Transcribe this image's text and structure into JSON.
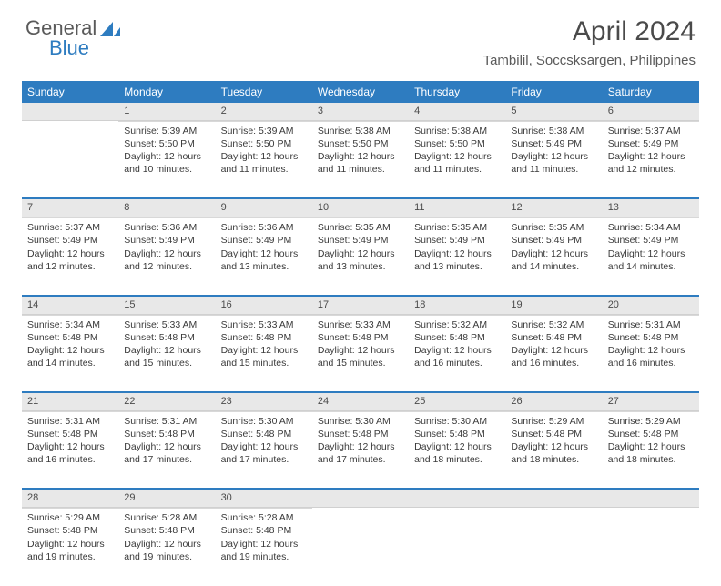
{
  "logo": {
    "text1": "General",
    "text2": "Blue"
  },
  "title": "April 2024",
  "location": "Tambilil, Soccsksargen, Philippines",
  "colors": {
    "header_bg": "#2e7cc0",
    "header_text": "#ffffff",
    "daynum_bg": "#e8e8e8",
    "text": "#3a3a3a",
    "accent": "#2e7cc0"
  },
  "typography": {
    "title_fontsize": 30,
    "location_fontsize": 15,
    "weekday_fontsize": 12,
    "daynum_fontsize": 11,
    "cell_fontsize": 10.5
  },
  "weekdays": [
    "Sunday",
    "Monday",
    "Tuesday",
    "Wednesday",
    "Thursday",
    "Friday",
    "Saturday"
  ],
  "calendar": {
    "type": "table",
    "columns": 7,
    "weeks": [
      {
        "nums": [
          "",
          "1",
          "2",
          "3",
          "4",
          "5",
          "6"
        ],
        "cells": [
          null,
          {
            "sunrise": "Sunrise: 5:39 AM",
            "sunset": "Sunset: 5:50 PM",
            "day1": "Daylight: 12 hours",
            "day2": "and 10 minutes."
          },
          {
            "sunrise": "Sunrise: 5:39 AM",
            "sunset": "Sunset: 5:50 PM",
            "day1": "Daylight: 12 hours",
            "day2": "and 11 minutes."
          },
          {
            "sunrise": "Sunrise: 5:38 AM",
            "sunset": "Sunset: 5:50 PM",
            "day1": "Daylight: 12 hours",
            "day2": "and 11 minutes."
          },
          {
            "sunrise": "Sunrise: 5:38 AM",
            "sunset": "Sunset: 5:50 PM",
            "day1": "Daylight: 12 hours",
            "day2": "and 11 minutes."
          },
          {
            "sunrise": "Sunrise: 5:38 AM",
            "sunset": "Sunset: 5:49 PM",
            "day1": "Daylight: 12 hours",
            "day2": "and 11 minutes."
          },
          {
            "sunrise": "Sunrise: 5:37 AM",
            "sunset": "Sunset: 5:49 PM",
            "day1": "Daylight: 12 hours",
            "day2": "and 12 minutes."
          }
        ]
      },
      {
        "nums": [
          "7",
          "8",
          "9",
          "10",
          "11",
          "12",
          "13"
        ],
        "cells": [
          {
            "sunrise": "Sunrise: 5:37 AM",
            "sunset": "Sunset: 5:49 PM",
            "day1": "Daylight: 12 hours",
            "day2": "and 12 minutes."
          },
          {
            "sunrise": "Sunrise: 5:36 AM",
            "sunset": "Sunset: 5:49 PM",
            "day1": "Daylight: 12 hours",
            "day2": "and 12 minutes."
          },
          {
            "sunrise": "Sunrise: 5:36 AM",
            "sunset": "Sunset: 5:49 PM",
            "day1": "Daylight: 12 hours",
            "day2": "and 13 minutes."
          },
          {
            "sunrise": "Sunrise: 5:35 AM",
            "sunset": "Sunset: 5:49 PM",
            "day1": "Daylight: 12 hours",
            "day2": "and 13 minutes."
          },
          {
            "sunrise": "Sunrise: 5:35 AM",
            "sunset": "Sunset: 5:49 PM",
            "day1": "Daylight: 12 hours",
            "day2": "and 13 minutes."
          },
          {
            "sunrise": "Sunrise: 5:35 AM",
            "sunset": "Sunset: 5:49 PM",
            "day1": "Daylight: 12 hours",
            "day2": "and 14 minutes."
          },
          {
            "sunrise": "Sunrise: 5:34 AM",
            "sunset": "Sunset: 5:49 PM",
            "day1": "Daylight: 12 hours",
            "day2": "and 14 minutes."
          }
        ]
      },
      {
        "nums": [
          "14",
          "15",
          "16",
          "17",
          "18",
          "19",
          "20"
        ],
        "cells": [
          {
            "sunrise": "Sunrise: 5:34 AM",
            "sunset": "Sunset: 5:48 PM",
            "day1": "Daylight: 12 hours",
            "day2": "and 14 minutes."
          },
          {
            "sunrise": "Sunrise: 5:33 AM",
            "sunset": "Sunset: 5:48 PM",
            "day1": "Daylight: 12 hours",
            "day2": "and 15 minutes."
          },
          {
            "sunrise": "Sunrise: 5:33 AM",
            "sunset": "Sunset: 5:48 PM",
            "day1": "Daylight: 12 hours",
            "day2": "and 15 minutes."
          },
          {
            "sunrise": "Sunrise: 5:33 AM",
            "sunset": "Sunset: 5:48 PM",
            "day1": "Daylight: 12 hours",
            "day2": "and 15 minutes."
          },
          {
            "sunrise": "Sunrise: 5:32 AM",
            "sunset": "Sunset: 5:48 PM",
            "day1": "Daylight: 12 hours",
            "day2": "and 16 minutes."
          },
          {
            "sunrise": "Sunrise: 5:32 AM",
            "sunset": "Sunset: 5:48 PM",
            "day1": "Daylight: 12 hours",
            "day2": "and 16 minutes."
          },
          {
            "sunrise": "Sunrise: 5:31 AM",
            "sunset": "Sunset: 5:48 PM",
            "day1": "Daylight: 12 hours",
            "day2": "and 16 minutes."
          }
        ]
      },
      {
        "nums": [
          "21",
          "22",
          "23",
          "24",
          "25",
          "26",
          "27"
        ],
        "cells": [
          {
            "sunrise": "Sunrise: 5:31 AM",
            "sunset": "Sunset: 5:48 PM",
            "day1": "Daylight: 12 hours",
            "day2": "and 16 minutes."
          },
          {
            "sunrise": "Sunrise: 5:31 AM",
            "sunset": "Sunset: 5:48 PM",
            "day1": "Daylight: 12 hours",
            "day2": "and 17 minutes."
          },
          {
            "sunrise": "Sunrise: 5:30 AM",
            "sunset": "Sunset: 5:48 PM",
            "day1": "Daylight: 12 hours",
            "day2": "and 17 minutes."
          },
          {
            "sunrise": "Sunrise: 5:30 AM",
            "sunset": "Sunset: 5:48 PM",
            "day1": "Daylight: 12 hours",
            "day2": "and 17 minutes."
          },
          {
            "sunrise": "Sunrise: 5:30 AM",
            "sunset": "Sunset: 5:48 PM",
            "day1": "Daylight: 12 hours",
            "day2": "and 18 minutes."
          },
          {
            "sunrise": "Sunrise: 5:29 AM",
            "sunset": "Sunset: 5:48 PM",
            "day1": "Daylight: 12 hours",
            "day2": "and 18 minutes."
          },
          {
            "sunrise": "Sunrise: 5:29 AM",
            "sunset": "Sunset: 5:48 PM",
            "day1": "Daylight: 12 hours",
            "day2": "and 18 minutes."
          }
        ]
      },
      {
        "nums": [
          "28",
          "29",
          "30",
          "",
          "",
          "",
          ""
        ],
        "cells": [
          {
            "sunrise": "Sunrise: 5:29 AM",
            "sunset": "Sunset: 5:48 PM",
            "day1": "Daylight: 12 hours",
            "day2": "and 19 minutes."
          },
          {
            "sunrise": "Sunrise: 5:28 AM",
            "sunset": "Sunset: 5:48 PM",
            "day1": "Daylight: 12 hours",
            "day2": "and 19 minutes."
          },
          {
            "sunrise": "Sunrise: 5:28 AM",
            "sunset": "Sunset: 5:48 PM",
            "day1": "Daylight: 12 hours",
            "day2": "and 19 minutes."
          },
          null,
          null,
          null,
          null
        ]
      }
    ]
  }
}
